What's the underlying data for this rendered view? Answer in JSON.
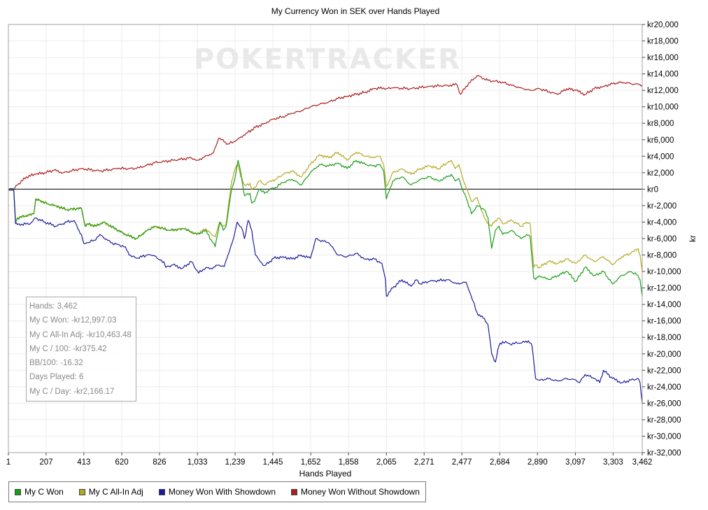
{
  "watermark": "POKERTRACKER",
  "stats": [
    "Hands: 3,462",
    "My C Won: -kr12,997.03",
    "My C All-In Adj: -kr10,463.48",
    "My C / 100: -kr375.42",
    "BB/100: -16.32",
    "Days Played: 6",
    "My C / Day: -kr2,166.17"
  ],
  "chart_data": {
    "type": "line",
    "title": "My Currency Won in SEK over Hands Played",
    "xlabel": "Hands Played",
    "ylabel": "kr",
    "xlim": [
      1,
      3462
    ],
    "ylim": [
      -32000,
      20000
    ],
    "x_ticks": [
      1,
      207,
      413,
      620,
      826,
      1033,
      1239,
      1445,
      1652,
      1858,
      2065,
      2271,
      2477,
      2684,
      2890,
      3097,
      3303,
      3462
    ],
    "x_tick_labels": [
      "1",
      "207",
      "413",
      "620",
      "826",
      "1,033",
      "1,239",
      "1,445",
      "1,652",
      "1,858",
      "2,065",
      "2,271",
      "2,477",
      "2,684",
      "2,890",
      "3,097",
      "3,303",
      "3,462"
    ],
    "y_ticks": [
      20000,
      18000,
      16000,
      14000,
      12000,
      10000,
      8000,
      6000,
      4000,
      2000,
      0,
      -2000,
      -4000,
      -6000,
      -8000,
      -10000,
      -12000,
      -14000,
      -16000,
      -18000,
      -20000,
      -22000,
      -24000,
      -26000,
      -28000,
      -30000,
      -32000
    ],
    "y_tick_labels": [
      "kr20,000",
      "kr18,000",
      "kr16,000",
      "kr14,000",
      "kr12,000",
      "kr10,000",
      "kr8,000",
      "kr6,000",
      "kr4,000",
      "kr2,000",
      "kr0",
      "kr-2,000",
      "kr-4,000",
      "kr-6,000",
      "kr-8,000",
      "kr-10,000",
      "kr-12,000",
      "kr-14,000",
      "kr-16,000",
      "kr-18,000",
      "kr-20,000",
      "kr-22,000",
      "kr-24,000",
      "kr-26,000",
      "kr-28,000",
      "kr-30,000",
      "kr-32,000"
    ],
    "grid": true,
    "legend_position": "bottom-left",
    "series": [
      {
        "name": "My C Won",
        "color": "#1a9e1a",
        "x": [
          1,
          30,
          40,
          50,
          140,
          150,
          220,
          260,
          320,
          400,
          420,
          430,
          480,
          520,
          640,
          700,
          760,
          800,
          880,
          960,
          1030,
          1080,
          1110,
          1130,
          1155,
          1175,
          1190,
          1220,
          1240,
          1255,
          1270,
          1290,
          1320,
          1330,
          1345,
          1370,
          1400,
          1430,
          1460,
          1500,
          1550,
          1600,
          1650,
          1700,
          1750,
          1800,
          1850,
          1900,
          1950,
          1990,
          2030,
          2050,
          2065,
          2100,
          2150,
          2200,
          2250,
          2300,
          2350,
          2400,
          2420,
          2440,
          2460,
          2480,
          2500,
          2530,
          2560,
          2600,
          2620,
          2640,
          2660,
          2680,
          2700,
          2750,
          2800,
          2830,
          2850,
          2870,
          2880,
          2900,
          2950,
          3000,
          3050,
          3100,
          3150,
          3200,
          3250,
          3300,
          3350,
          3400,
          3440,
          3450,
          3462
        ],
        "y": [
          0,
          0,
          -4000,
          -3500,
          -3000,
          -1200,
          -1800,
          -2000,
          -2500,
          -2300,
          -4500,
          -4200,
          -4500,
          -4000,
          -5500,
          -6000,
          -5000,
          -4500,
          -5000,
          -4800,
          -5500,
          -5000,
          -6200,
          -7000,
          -4000,
          -5000,
          -4500,
          0,
          1500,
          3500,
          2000,
          -800,
          -500,
          -1700,
          -1500,
          0,
          -500,
          0,
          200,
          800,
          1200,
          500,
          2000,
          3000,
          2800,
          3200,
          2500,
          3500,
          3000,
          2800,
          3000,
          2200,
          -1200,
          1000,
          1500,
          500,
          1200,
          1500,
          1000,
          1500,
          1800,
          1000,
          1300,
          0,
          -1000,
          -3000,
          -2000,
          -2500,
          -3500,
          -7200,
          -5000,
          -4500,
          -5500,
          -5000,
          -6000,
          -5500,
          -5800,
          -10800,
          -11000,
          -10500,
          -11000,
          -10500,
          -10000,
          -11200,
          -9500,
          -10500,
          -10000,
          -11500,
          -10500,
          -10000,
          -10500,
          -11000,
          -13000
        ]
      },
      {
        "name": "My C All-In Adj",
        "color": "#b5a922",
        "x": [
          1,
          30,
          40,
          50,
          140,
          150,
          220,
          260,
          320,
          400,
          420,
          430,
          480,
          520,
          640,
          700,
          760,
          800,
          880,
          960,
          1030,
          1080,
          1110,
          1130,
          1155,
          1175,
          1190,
          1220,
          1240,
          1255,
          1270,
          1290,
          1320,
          1330,
          1345,
          1370,
          1400,
          1430,
          1460,
          1500,
          1550,
          1600,
          1650,
          1700,
          1750,
          1800,
          1850,
          1900,
          1950,
          1990,
          2030,
          2050,
          2065,
          2100,
          2150,
          2200,
          2250,
          2300,
          2350,
          2400,
          2420,
          2440,
          2460,
          2480,
          2500,
          2530,
          2560,
          2600,
          2620,
          2640,
          2660,
          2680,
          2700,
          2750,
          2800,
          2830,
          2850,
          2870,
          2880,
          2900,
          2950,
          3000,
          3050,
          3100,
          3150,
          3200,
          3250,
          3300,
          3350,
          3400,
          3440,
          3450,
          3462
        ],
        "y": [
          0,
          0,
          -4000,
          -3500,
          -3000,
          -1200,
          -1800,
          -2000,
          -2500,
          -2300,
          -4500,
          -4200,
          -4500,
          -4000,
          -5500,
          -6000,
          -5000,
          -4500,
          -5000,
          -4800,
          -5500,
          -4800,
          -5500,
          -5800,
          -4000,
          -4500,
          -4200,
          1000,
          2500,
          3000,
          1500,
          500,
          700,
          0,
          200,
          1000,
          500,
          1000,
          1200,
          1800,
          2200,
          1500,
          3000,
          4200,
          3800,
          4500,
          3500,
          4500,
          4000,
          3800,
          4000,
          3000,
          300,
          2000,
          2500,
          1800,
          2500,
          2800,
          2500,
          3200,
          3500,
          2500,
          3000,
          1500,
          200,
          -1500,
          -1000,
          -3500,
          -4200,
          -4500,
          -3800,
          -3500,
          -4200,
          -3800,
          -4500,
          -4000,
          -4200,
          -9500,
          -9200,
          -9500,
          -8800,
          -9000,
          -8500,
          -9000,
          -8000,
          -8800,
          -8200,
          -9200,
          -8200,
          -7800,
          -7200,
          -8000,
          -10000
        ]
      },
      {
        "name": "Money Won With Showdown",
        "color": "#1c1c9e",
        "x": [
          1,
          30,
          40,
          50,
          120,
          150,
          200,
          260,
          320,
          360,
          380,
          400,
          413,
          430,
          470,
          500,
          560,
          640,
          660,
          700,
          760,
          800,
          820,
          850,
          860,
          900,
          950,
          1000,
          1040,
          1080,
          1100,
          1150,
          1180,
          1200,
          1230,
          1250,
          1280,
          1290,
          1310,
          1330,
          1350,
          1370,
          1400,
          1450,
          1500,
          1550,
          1600,
          1650,
          1680,
          1700,
          1750,
          1800,
          1850,
          1900,
          1950,
          2000,
          2040,
          2060,
          2065,
          2100,
          2150,
          2200,
          2230,
          2250,
          2300,
          2400,
          2450,
          2480,
          2500,
          2520,
          2560,
          2580,
          2600,
          2620,
          2640,
          2660,
          2680,
          2700,
          2740,
          2780,
          2820,
          2840,
          2860,
          2880,
          2900,
          2950,
          3000,
          3050,
          3100,
          3120,
          3150,
          3200,
          3230,
          3250,
          3300,
          3350,
          3400,
          3440,
          3450,
          3462
        ],
        "y": [
          0,
          0,
          -4200,
          -4300,
          -4200,
          -3500,
          -4000,
          -4500,
          -4000,
          -3800,
          -4800,
          -5500,
          -6600,
          -6500,
          -6200,
          -5500,
          -6500,
          -7000,
          -8000,
          -8400,
          -8000,
          -8100,
          -8500,
          -8800,
          -9500,
          -9200,
          -9600,
          -8800,
          -10200,
          -9500,
          -9700,
          -9200,
          -9400,
          -8000,
          -6000,
          -4000,
          -5000,
          -6000,
          -3800,
          -5000,
          -8000,
          -8600,
          -9300,
          -8400,
          -8200,
          -8500,
          -8000,
          -8400,
          -6000,
          -6200,
          -6500,
          -8000,
          -8200,
          -7800,
          -8500,
          -8500,
          -9000,
          -11000,
          -13000,
          -12000,
          -11000,
          -11800,
          -11000,
          -11500,
          -11200,
          -11000,
          -11500,
          -11400,
          -11300,
          -12500,
          -15000,
          -15500,
          -15700,
          -16500,
          -20000,
          -21000,
          -19000,
          -18500,
          -18800,
          -18700,
          -18600,
          -18400,
          -19000,
          -23000,
          -23200,
          -23000,
          -23300,
          -23000,
          -23200,
          -23500,
          -22500,
          -23000,
          -23500,
          -22000,
          -23000,
          -23500,
          -23200,
          -23000,
          -23500,
          -26000
        ]
      },
      {
        "name": "Money Won Without Showdown",
        "color": "#aa1f1f",
        "x": [
          1,
          30,
          50,
          100,
          150,
          200,
          250,
          300,
          400,
          500,
          600,
          700,
          800,
          900,
          1000,
          1033,
          1100,
          1120,
          1150,
          1200,
          1239,
          1300,
          1350,
          1400,
          1445,
          1500,
          1550,
          1600,
          1650,
          1700,
          1750,
          1800,
          1850,
          1900,
          1950,
          2000,
          2050,
          2065,
          2100,
          2200,
          2300,
          2400,
          2450,
          2470,
          2500,
          2560,
          2620,
          2700,
          2750,
          2800,
          2850,
          2900,
          3000,
          3050,
          3100,
          3150,
          3200,
          3250,
          3300,
          3350,
          3400,
          3450,
          3462
        ],
        "y": [
          0,
          0,
          500,
          1500,
          1800,
          2000,
          2300,
          2000,
          2500,
          2200,
          2500,
          2500,
          3200,
          3500,
          3800,
          3500,
          4200,
          4400,
          6200,
          5500,
          5800,
          6800,
          7500,
          8000,
          8500,
          8800,
          9200,
          9500,
          10000,
          10300,
          10600,
          11000,
          11300,
          11500,
          11800,
          12200,
          12300,
          12200,
          12300,
          12200,
          12500,
          12600,
          12700,
          11500,
          12500,
          13800,
          13200,
          13000,
          12600,
          12300,
          12000,
          12200,
          11500,
          12200,
          12000,
          11500,
          12200,
          12500,
          12800,
          13000,
          12800,
          12700,
          12600
        ]
      }
    ]
  }
}
